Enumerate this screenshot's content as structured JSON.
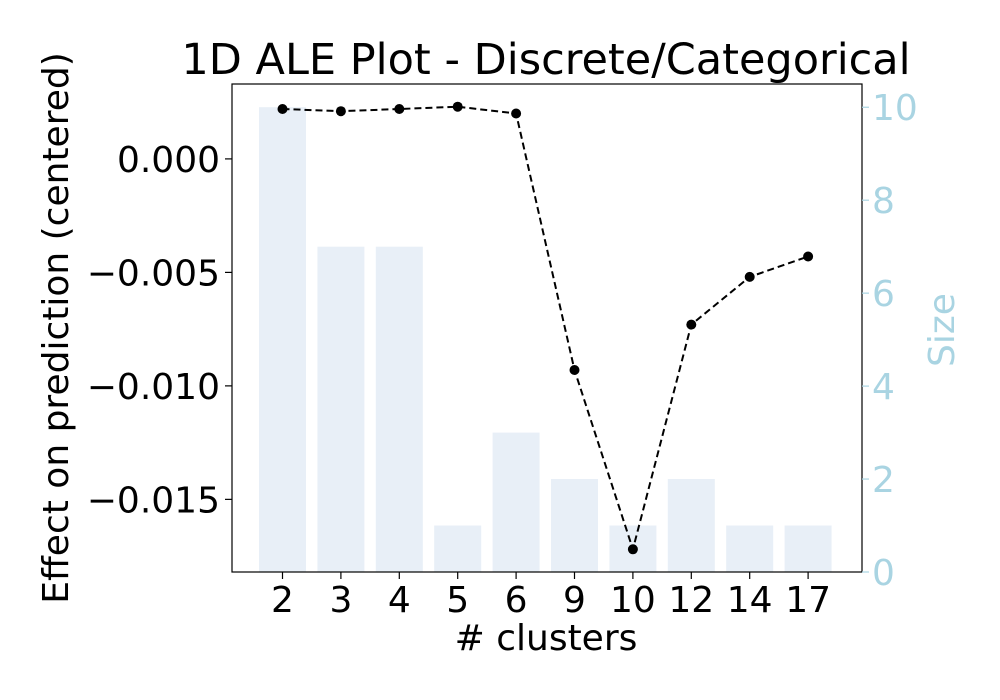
{
  "chart_data": {
    "type": "bar+line",
    "title": "1D ALE Plot - Discrete/Categorical",
    "xlabel": "# clusters",
    "ylabel": "Effect on prediction (centered)",
    "ylabel_right": "Size",
    "categories": [
      "2",
      "3",
      "4",
      "5",
      "6",
      "9",
      "10",
      "12",
      "14",
      "17"
    ],
    "bars": {
      "name": "Size",
      "axis": "right",
      "values": [
        10,
        7,
        7,
        1,
        3,
        2,
        1,
        2,
        1,
        1
      ],
      "ylim": [
        0,
        10.5
      ],
      "ticks": [
        0,
        2,
        4,
        6,
        8,
        10
      ]
    },
    "line": {
      "name": "Effect",
      "axis": "left",
      "values": [
        0.0022,
        0.0021,
        0.0022,
        0.0023,
        0.002,
        -0.0093,
        -0.0172,
        -0.0073,
        -0.0052,
        -0.0043
      ],
      "ylim": [
        -0.0182,
        0.0033
      ],
      "ticks": [
        0.0,
        -0.005,
        -0.01,
        -0.015
      ],
      "tick_labels": [
        "0.000",
        "−0.005",
        "−0.010",
        "−0.015"
      ]
    },
    "grid": false,
    "colors": {
      "bar": "#e8eff7",
      "line": "#000000",
      "right_axis": "#a9d4e2"
    }
  }
}
